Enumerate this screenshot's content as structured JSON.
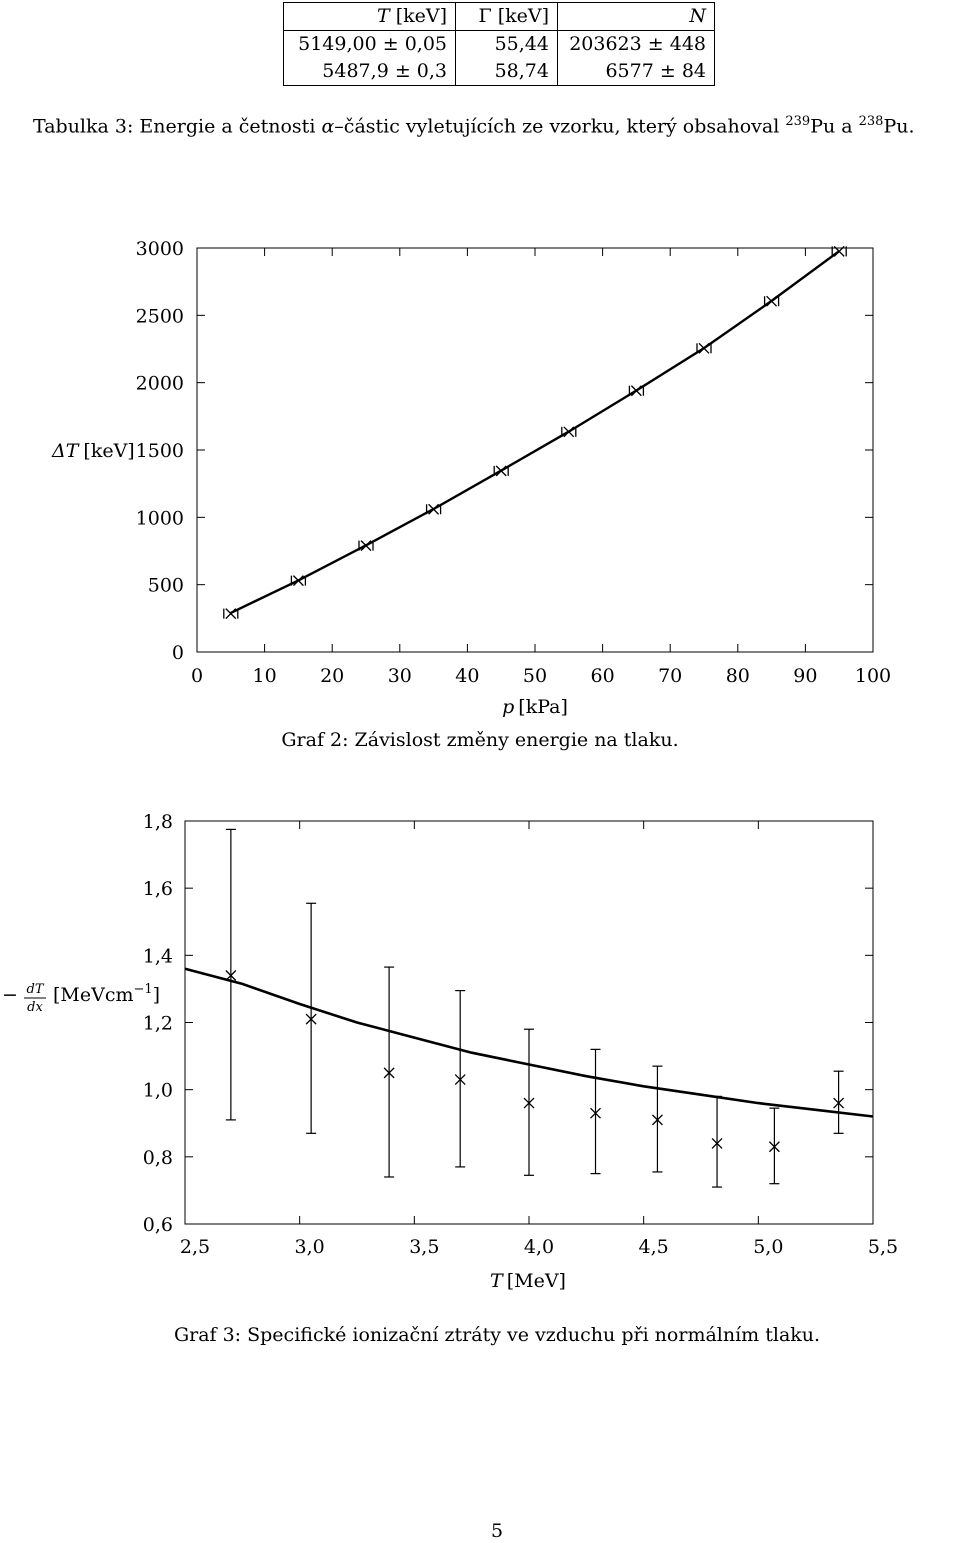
{
  "table": {
    "headers": [
      "T [keV]",
      "Γ [keV]",
      "N"
    ],
    "rows": [
      [
        "5149,00 ± 0,05",
        "55,44",
        "203623 ± 448"
      ],
      [
        "5487,9 ± 0,3",
        "58,74",
        "6577 ± 84"
      ]
    ],
    "caption_prefix": "Tabulka 3: Energie a četnosti",
    "caption_alpha": "α",
    "caption_middle": "–částic vyletujících ze vzorku, který obsahoval",
    "caption_iso1_mass": "239",
    "caption_iso1": "Pu a",
    "caption_iso2_mass": "238",
    "caption_iso2": "Pu."
  },
  "graph2": {
    "caption": "Graf 2: Závislost změny energie na tlaku.",
    "xlabel_var": "p",
    "xlabel_unit": "[kPa]",
    "ylabel_var": "ΔT",
    "ylabel_unit": "[keV]"
  },
  "graph3": {
    "caption": "Graf 3: Specifické ionizační ztráty ve vzduchu při normálním tlaku.",
    "xlabel_var": "T",
    "xlabel_unit": "[MeV]",
    "ylabel_minus": "−",
    "ylabel_num": "dT",
    "ylabel_den": "dx",
    "ylabel_unit": "[MeVcm",
    "ylabel_exp": "−1",
    "ylabel_close": "]"
  },
  "page_number": "5",
  "chart_data": [
    {
      "type": "scatter",
      "x": [
        5,
        15,
        25,
        35,
        45,
        55,
        65,
        75,
        85,
        95
      ],
      "y": [
        285,
        530,
        790,
        1060,
        1345,
        1635,
        1940,
        2255,
        2605,
        2975
      ],
      "fit": {
        "x": [
          5,
          15,
          25,
          35,
          45,
          55,
          65,
          75,
          85,
          95
        ],
        "y": [
          290,
          532,
          792,
          1062,
          1347,
          1637,
          1942,
          2257,
          2607,
          2977
        ]
      },
      "xlim": [
        0,
        100
      ],
      "ylim": [
        0,
        3000
      ],
      "xticks": [
        "0",
        "10",
        "20",
        "30",
        "40",
        "50",
        "60",
        "70",
        "80",
        "90",
        "100"
      ],
      "yticks": [
        "0",
        "500",
        "1000",
        "1500",
        "2000",
        "2500",
        "3000"
      ],
      "marker": "boxed-x",
      "grid": false
    },
    {
      "type": "scatter",
      "x": [
        2.7,
        3.05,
        3.39,
        3.7,
        4.0,
        4.29,
        4.56,
        4.82,
        5.07,
        5.35
      ],
      "y": [
        1.34,
        1.21,
        1.05,
        1.03,
        0.96,
        0.93,
        0.91,
        0.84,
        0.83,
        0.96
      ],
      "err_low": [
        0.91,
        0.87,
        0.74,
        0.77,
        0.745,
        0.75,
        0.755,
        0.71,
        0.72,
        0.87
      ],
      "err_high": [
        1.775,
        1.555,
        1.365,
        1.295,
        1.18,
        1.12,
        1.07,
        0.98,
        0.945,
        1.055
      ],
      "fit": {
        "x": [
          2.5,
          2.75,
          3.0,
          3.25,
          3.5,
          3.75,
          4.0,
          4.25,
          4.5,
          4.75,
          5.0,
          5.25,
          5.5
        ],
        "y": [
          1.36,
          1.315,
          1.255,
          1.2,
          1.155,
          1.11,
          1.075,
          1.04,
          1.01,
          0.985,
          0.96,
          0.94,
          0.92
        ]
      },
      "xlim": [
        2.5,
        5.5
      ],
      "ylim": [
        0.6,
        1.8
      ],
      "xticks": [
        "2,5",
        "3,0",
        "3,5",
        "4,0",
        "4,5",
        "5,0",
        "5,5"
      ],
      "yticks": [
        "0,6",
        "0,8",
        "1,0",
        "1,2",
        "1,4",
        "1,6",
        "1,8"
      ],
      "marker": "x",
      "grid": false
    }
  ]
}
